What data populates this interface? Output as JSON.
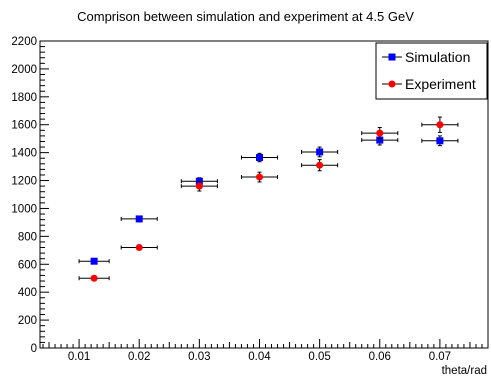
{
  "chart_data": {
    "type": "scatter",
    "title": "Comprison between simulation and experiment at 4.5 GeV",
    "xlabel": "theta/rad",
    "ylabel": "",
    "xlim": [
      0.0035,
      0.078
    ],
    "ylim": [
      0,
      2200
    ],
    "x_ticks": [
      "0.01",
      "0.02",
      "0.03",
      "0.04",
      "0.05",
      "0.06",
      "0.07"
    ],
    "y_ticks": [
      "0",
      "200",
      "400",
      "600",
      "800",
      "1000",
      "1200",
      "1400",
      "1600",
      "1800",
      "2000",
      "2200"
    ],
    "grid": false,
    "legend_position": "top-right",
    "series": [
      {
        "name": "Simulation",
        "color": "#0000ff",
        "marker": "square",
        "points": [
          {
            "x": 0.0125,
            "y": 622,
            "xerr": 0.0025,
            "yerr": 10
          },
          {
            "x": 0.02,
            "y": 925,
            "xerr": 0.003,
            "yerr": 20
          },
          {
            "x": 0.03,
            "y": 1195,
            "xerr": 0.003,
            "yerr": 25
          },
          {
            "x": 0.04,
            "y": 1365,
            "xerr": 0.003,
            "yerr": 30
          },
          {
            "x": 0.05,
            "y": 1405,
            "xerr": 0.003,
            "yerr": 35
          },
          {
            "x": 0.06,
            "y": 1490,
            "xerr": 0.003,
            "yerr": 35
          },
          {
            "x": 0.07,
            "y": 1485,
            "xerr": 0.003,
            "yerr": 35
          }
        ]
      },
      {
        "name": "Experiment",
        "color": "#ff0000",
        "marker": "circle",
        "points": [
          {
            "x": 0.0125,
            "y": 500,
            "xerr": 0.0025,
            "yerr": 10
          },
          {
            "x": 0.02,
            "y": 720,
            "xerr": 0.003,
            "yerr": 12
          },
          {
            "x": 0.03,
            "y": 1160,
            "xerr": 0.003,
            "yerr": 35
          },
          {
            "x": 0.04,
            "y": 1225,
            "xerr": 0.003,
            "yerr": 35
          },
          {
            "x": 0.05,
            "y": 1310,
            "xerr": 0.003,
            "yerr": 40
          },
          {
            "x": 0.06,
            "y": 1540,
            "xerr": 0.003,
            "yerr": 40
          },
          {
            "x": 0.07,
            "y": 1600,
            "xerr": 0.003,
            "yerr": 55
          }
        ]
      }
    ]
  }
}
